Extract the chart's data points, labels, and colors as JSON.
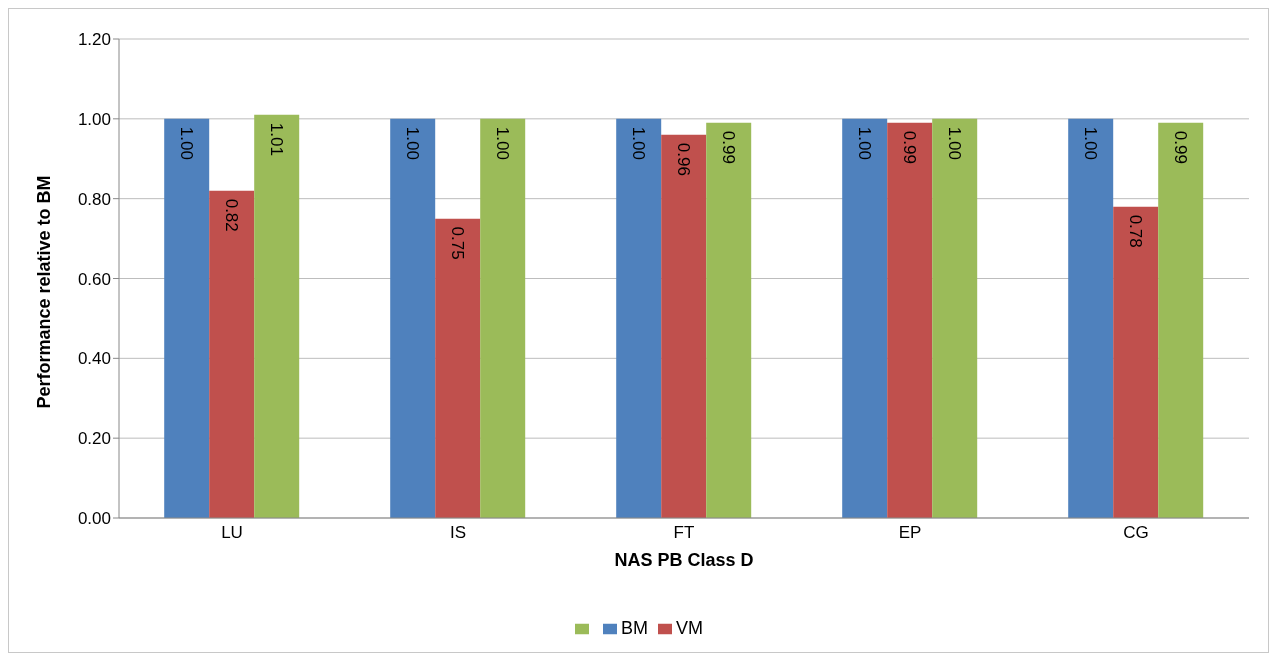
{
  "chart_data": {
    "type": "bar",
    "xlabel": "NAS PB Class D",
    "ylabel": "Performance relative to BM",
    "categories": [
      "LU",
      "IS",
      "FT",
      "EP",
      "CG"
    ],
    "series": [
      {
        "name": "BM",
        "color": "#4f81bd",
        "values": [
          1.0,
          1.0,
          1.0,
          1.0,
          1.0
        ],
        "value_labels": [
          "1.00",
          "1.00",
          "1.00",
          "1.00",
          "1.00"
        ]
      },
      {
        "name": "VM",
        "color": "#c0504d",
        "values": [
          0.82,
          0.75,
          0.96,
          0.99,
          0.78
        ],
        "value_labels": [
          "0.82",
          "0.75",
          "0.96",
          "0.99",
          "0.78"
        ]
      },
      {
        "color": "#9bbb59",
        "values": [
          1.01,
          1.0,
          0.99,
          1.0,
          0.99
        ],
        "value_labels": [
          "1.01",
          "1.00",
          "0.99",
          "1.00",
          "0.99"
        ]
      }
    ],
    "ylim": [
      0,
      1.2
    ],
    "yticks": [
      {
        "value": 0,
        "label": "0.00"
      },
      {
        "value": 0.2,
        "label": "0.20"
      },
      {
        "value": 0.4,
        "label": "0.40"
      },
      {
        "value": 0.6,
        "label": "0.60"
      },
      {
        "value": 0.8,
        "label": "0.80"
      },
      {
        "value": 1.0,
        "label": "1.00"
      },
      {
        "value": 1.2,
        "label": "1.20"
      }
    ],
    "grid": "y",
    "legend": "bottom"
  }
}
